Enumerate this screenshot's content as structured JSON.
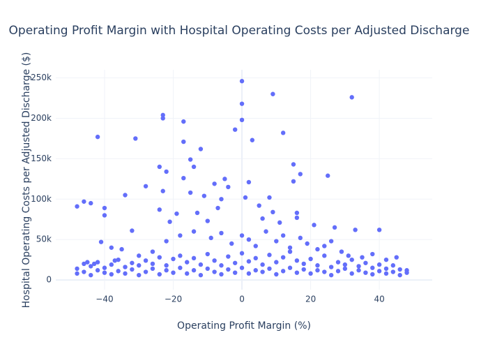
{
  "chart_data": {
    "type": "scatter",
    "title": "Operating Profit Margin with Hospital Operating Costs per Adjusted Discharge",
    "x_label": "Operating Profit Margin (%)",
    "y_label": "Hospital Operating Costs per Adjusted Discharge ($)",
    "color": "#636efa",
    "grid": true,
    "xlim": [
      -54.2,
      55.4
    ],
    "ylim": [
      -12000,
      260000
    ],
    "xticks": [
      {
        "value": -40,
        "label": "−40"
      },
      {
        "value": -20,
        "label": "−20"
      },
      0,
      20,
      40
    ],
    "yticks": [
      0,
      {
        "value": 50000,
        "label": "50k"
      },
      {
        "value": 100000,
        "label": "100k"
      },
      {
        "value": 150000,
        "label": "150k"
      },
      {
        "value": 200000,
        "label": "200k"
      },
      {
        "value": 250000,
        "label": "250k"
      }
    ],
    "x": [
      0,
      9,
      32,
      0,
      -23,
      -23,
      0,
      -17,
      -2,
      -42,
      12,
      -31,
      3,
      -17,
      -12,
      -15,
      15,
      -14,
      -24,
      17,
      -22,
      25,
      -17,
      -5,
      2,
      15,
      -28,
      -4,
      -8,
      -34,
      -23,
      -15,
      -11,
      -6,
      -46,
      -48,
      -44,
      -40,
      -40,
      8,
      1,
      5,
      9,
      -19,
      -13,
      -7,
      16,
      16,
      21,
      27,
      33,
      40,
      -32,
      -41,
      -38,
      -24,
      -21,
      -10,
      6,
      11,
      -35,
      -30,
      -26,
      -22,
      -18,
      -14,
      -9,
      -6,
      -3,
      0,
      2,
      4,
      7,
      10,
      12,
      14,
      17,
      19,
      22,
      24,
      26,
      29,
      31,
      35,
      38,
      42,
      45,
      -45,
      -43,
      -37,
      -48,
      -48,
      -46,
      -46,
      -44,
      -44,
      -42,
      -42,
      -40,
      -40,
      -38,
      -38,
      -36,
      -36,
      -34,
      -34,
      -32,
      -32,
      -30,
      -30,
      -28,
      -28,
      -26,
      -26,
      -24,
      -24,
      -22,
      -22,
      -20,
      -20,
      -18,
      -18,
      -16,
      -16,
      -14,
      -14,
      -12,
      -12,
      -10,
      -10,
      -8,
      -8,
      -6,
      -6,
      -4,
      -4,
      -2,
      -2,
      0,
      0,
      2,
      2,
      4,
      4,
      6,
      6,
      8,
      8,
      10,
      10,
      12,
      12,
      14,
      14,
      16,
      16,
      18,
      18,
      20,
      20,
      22,
      22,
      24,
      24,
      26,
      26,
      28,
      28,
      30,
      30,
      32,
      32,
      34,
      34,
      36,
      36,
      38,
      38,
      40,
      40,
      42,
      42,
      44,
      44,
      46,
      46,
      48,
      48
    ],
    "y": [
      246000,
      230000,
      226000,
      218000,
      204000,
      200000,
      198000,
      196000,
      186000,
      177000,
      182000,
      175000,
      173000,
      171000,
      162000,
      149000,
      143000,
      140000,
      140000,
      131000,
      134000,
      129000,
      126000,
      125000,
      121000,
      122000,
      116000,
      115000,
      119000,
      105000,
      110000,
      108000,
      104000,
      100000,
      97000,
      91000,
      95000,
      89000,
      80000,
      102000,
      102000,
      92000,
      84000,
      82000,
      83000,
      89000,
      83000,
      77000,
      68000,
      65000,
      62000,
      62000,
      61000,
      47000,
      40000,
      87000,
      72000,
      73000,
      76000,
      71000,
      38000,
      30000,
      35000,
      48000,
      55000,
      60000,
      52000,
      58000,
      45000,
      55000,
      50000,
      42000,
      60000,
      48000,
      55000,
      40000,
      52000,
      45000,
      38000,
      42000,
      48000,
      35000,
      30000,
      28000,
      32000,
      25000,
      28000,
      22000,
      20000,
      24000,
      8000,
      14000,
      10000,
      20000,
      6000,
      17000,
      12000,
      22000,
      9000,
      15000,
      7000,
      19000,
      11000,
      25000,
      8000,
      16000,
      13000,
      21000,
      6000,
      18000,
      10000,
      24000,
      14000,
      20000,
      7000,
      28000,
      12000,
      18000,
      9000,
      26000,
      15000,
      30000,
      8000,
      22000,
      12000,
      27000,
      6000,
      19000,
      14000,
      32000,
      10000,
      24000,
      7000,
      18000,
      13000,
      29000,
      9000,
      21000,
      15000,
      33000,
      8000,
      23000,
      12000,
      27000,
      10000,
      19000,
      14000,
      31000,
      7000,
      22000,
      11000,
      28000,
      15000,
      35000,
      9000,
      24000,
      13000,
      20000,
      8000,
      26000,
      12000,
      18000,
      10000,
      30000,
      6000,
      16000,
      11000,
      22000,
      14000,
      19000,
      8000,
      25000,
      12000,
      17000,
      9000,
      21000,
      7000,
      15000,
      11000,
      19000,
      8000,
      14000,
      10000,
      18000,
      6000,
      13000,
      9000,
      12000
    ]
  }
}
